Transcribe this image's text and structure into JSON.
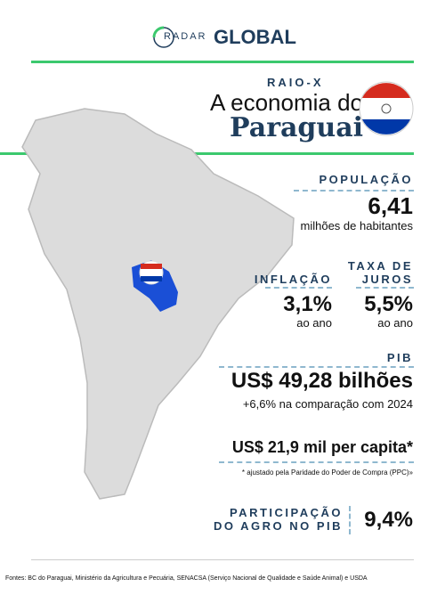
{
  "header": {
    "logo_left": "RADAR",
    "logo_right": "GLOBAL"
  },
  "kicker": "RAIO-X",
  "title": {
    "line1": "A economia do",
    "line2": "Paraguai"
  },
  "population": {
    "label": "POPULAÇÃO",
    "value": "6,41",
    "unit": "milhões de habitantes"
  },
  "inflation": {
    "label": "INFLAÇÃO",
    "value": "3,1%",
    "unit": "ao ano"
  },
  "interest": {
    "label": [
      "TAXA DE",
      "JUROS"
    ],
    "value": "5,5%",
    "unit": "ao ano"
  },
  "gdp": {
    "label": "PIB",
    "value": "US$ 49,28 bilhões",
    "growth": "+6,6% na comparação com 2024",
    "per_capita": "US$ 21,9 mil per capita*",
    "note": "* ajustado pela Paridade do Poder de Compra (PPC)»"
  },
  "agro": {
    "label": [
      "PARTICIPAÇÃO",
      "DO AGRO NO PIB"
    ],
    "value": "9,4%"
  },
  "footer": "Fontes: BC do Paraguai, Ministério da Agricultura e Pecuária, SENACSA (Serviço Nacional de Qualidade e Saúde Animal) e USDA"
}
